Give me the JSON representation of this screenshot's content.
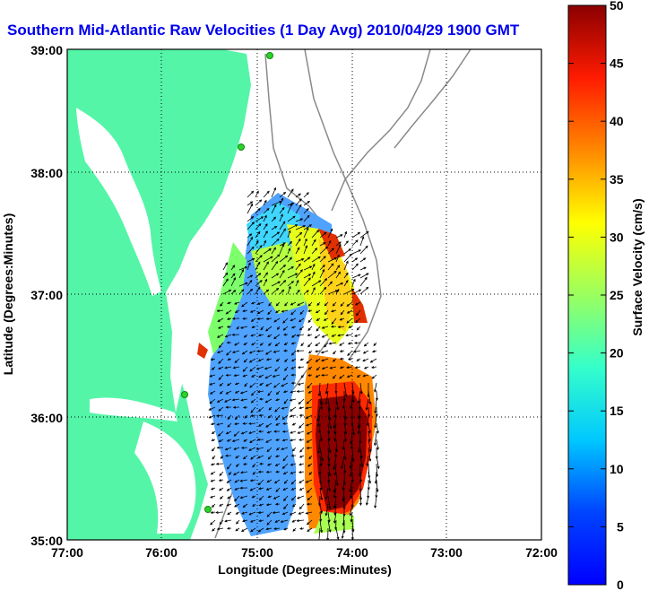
{
  "title": "Southern Mid-Atlantic Raw Velocities (1 Day Avg) 2010/04/29 1900 GMT",
  "map": {
    "xlabel": "Longitude (Degrees:Minutes)",
    "ylabel": "Latitude (Degrees:Minutes)",
    "x_ticks": [
      "77:00",
      "76:00",
      "75:00",
      "74:00",
      "73:00",
      "72:00"
    ],
    "y_ticks": [
      "39:00",
      "38:00",
      "37:00",
      "36:00",
      "35:00"
    ],
    "land_color": "#55f5a8",
    "grid": "dotted",
    "station_color": "#2ad32a"
  },
  "colorbar": {
    "label": "Surface Velocity (cm/s)",
    "ticks": [
      "50",
      "45",
      "40",
      "35",
      "30",
      "25",
      "20",
      "15",
      "10",
      "5",
      "0"
    ],
    "range": [
      0,
      50
    ],
    "colormap": "jet"
  }
}
